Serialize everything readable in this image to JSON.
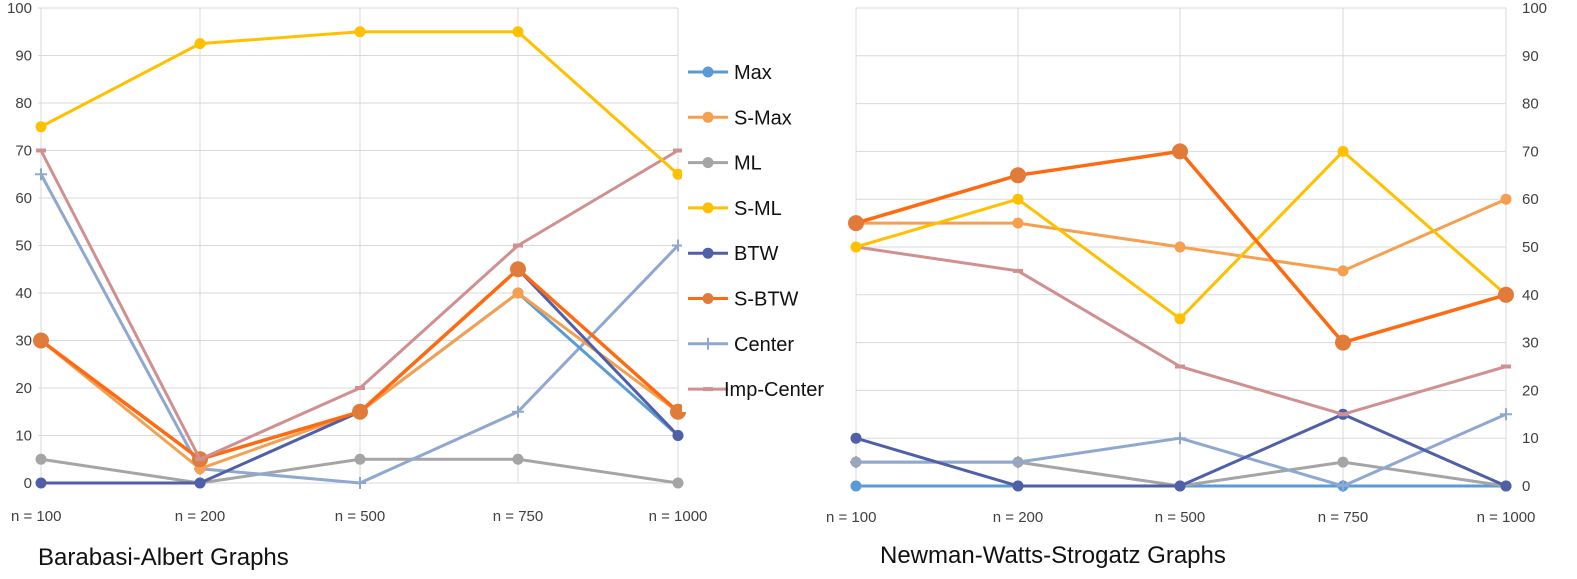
{
  "series_styles": {
    "Max": {
      "color": "#5B9BD5",
      "marker": "circle"
    },
    "S-Max": {
      "color": "#F4A050",
      "marker": "circle"
    },
    "ML": {
      "color": "#A5A5A5",
      "marker": "circle"
    },
    "S-ML": {
      "color": "#FFC000",
      "marker": "circle"
    },
    "BTW": {
      "color": "#4F5FA8",
      "marker": "circle"
    },
    "S-BTW": {
      "color": "#FF6A10",
      "marker": "circle-large"
    },
    "Center": {
      "color": "#8FA8D0",
      "marker": "cross"
    },
    "Imp-Center": {
      "color": "#D09090",
      "marker": "dash"
    }
  },
  "legend": {
    "items": [
      "Max",
      "S-Max",
      "ML",
      "S-ML",
      "BTW",
      "S-BTW",
      "Center",
      "Imp-Center"
    ]
  },
  "chart_data": [
    {
      "type": "line",
      "title": "Barabasi-Albert Graphs",
      "categories": [
        "n = 100",
        "n = 200",
        "n = 500",
        "n = 750",
        "n = 1000"
      ],
      "ylim": [
        0,
        100
      ],
      "yticks": [
        0,
        10,
        20,
        30,
        40,
        50,
        60,
        70,
        80,
        90,
        100
      ],
      "y_axis_side": "left",
      "grid": true,
      "series": [
        {
          "name": "ML",
          "values": [
            5,
            0,
            5,
            5,
            0
          ]
        },
        {
          "name": "Center",
          "values": [
            65,
            3,
            0,
            15,
            50
          ]
        },
        {
          "name": "Max",
          "values": [
            30,
            5,
            15,
            40,
            10
          ]
        },
        {
          "name": "S-Max",
          "values": [
            30,
            3,
            15,
            40,
            15
          ]
        },
        {
          "name": "BTW",
          "values": [
            0,
            0,
            15,
            45,
            10
          ]
        },
        {
          "name": "S-BTW",
          "values": [
            30,
            5,
            15,
            45,
            15
          ]
        },
        {
          "name": "Imp-Center",
          "values": [
            70,
            5,
            20,
            50,
            70
          ]
        },
        {
          "name": "S-ML",
          "values": [
            75,
            92.5,
            95,
            95,
            65
          ]
        }
      ]
    },
    {
      "type": "line",
      "title": "Newman-Watts-Strogatz Graphs",
      "categories": [
        "n = 100",
        "n = 200",
        "n = 500",
        "n = 750",
        "n = 1000"
      ],
      "ylim": [
        0,
        100
      ],
      "yticks": [
        0,
        10,
        20,
        30,
        40,
        50,
        60,
        70,
        80,
        90,
        100
      ],
      "y_axis_side": "right",
      "grid": true,
      "series": [
        {
          "name": "Max",
          "values": [
            0,
            0,
            0,
            0,
            0
          ]
        },
        {
          "name": "ML",
          "values": [
            5,
            5,
            0,
            5,
            0
          ]
        },
        {
          "name": "Center",
          "values": [
            5,
            5,
            10,
            0,
            15
          ]
        },
        {
          "name": "BTW",
          "values": [
            10,
            0,
            0,
            15,
            0
          ]
        },
        {
          "name": "Imp-Center",
          "values": [
            50,
            45,
            25,
            15,
            25
          ]
        },
        {
          "name": "S-Max",
          "values": [
            55,
            55,
            50,
            45,
            60
          ]
        },
        {
          "name": "S-ML",
          "values": [
            50,
            60,
            35,
            70,
            40
          ]
        },
        {
          "name": "S-BTW",
          "values": [
            55,
            65,
            70,
            30,
            40
          ]
        }
      ]
    }
  ]
}
